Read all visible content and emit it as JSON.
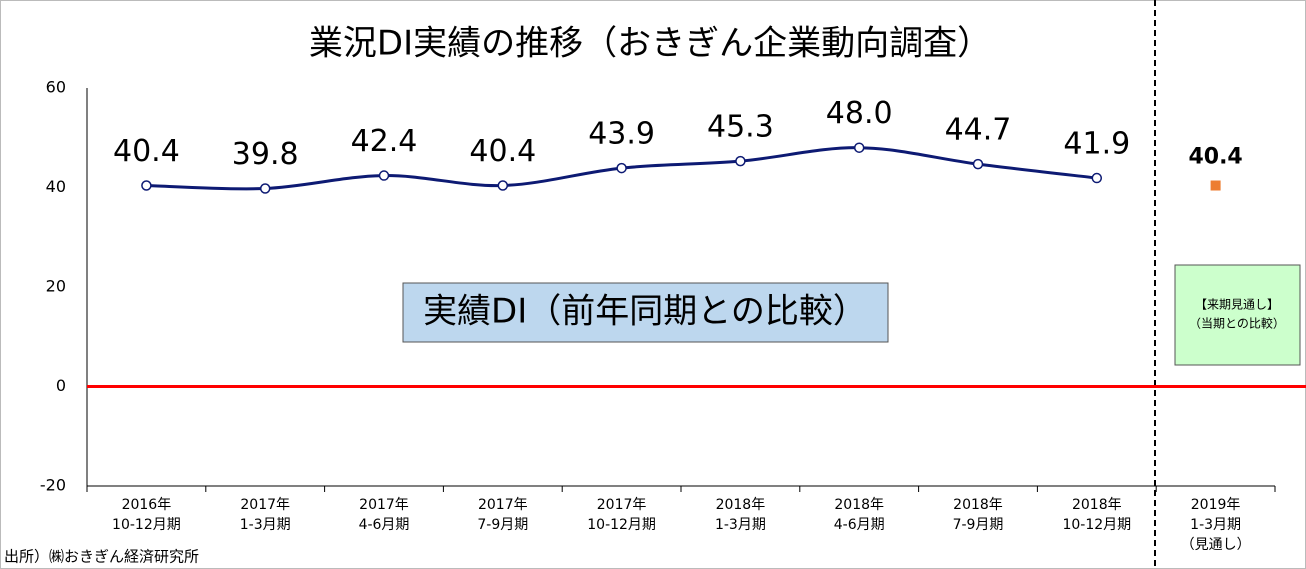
{
  "chart_data": {
    "type": "line",
    "title": "業況DI実績の推移（おきぎん企業動向調査）",
    "categories": [
      [
        "2016年",
        "10-12月期"
      ],
      [
        "2017年",
        "1-3月期"
      ],
      [
        "2017年",
        "4-6月期"
      ],
      [
        "2017年",
        "7-9月期"
      ],
      [
        "2017年",
        "10-12月期"
      ],
      [
        "2018年",
        "1-3月期"
      ],
      [
        "2018年",
        "4-6月期"
      ],
      [
        "2018年",
        "7-9月期"
      ],
      [
        "2018年",
        "10-12月期"
      ],
      [
        "2019年",
        "1-3月期",
        "（見通し）"
      ]
    ],
    "series": [
      {
        "color": "#0d1a73",
        "values": [
          40.4,
          39.8,
          42.4,
          40.4,
          43.9,
          45.3,
          48.0,
          44.7,
          41.9,
          null
        ],
        "value_labels": [
          "40.4",
          "39.8",
          "42.4",
          "40.4",
          "43.9",
          "45.3",
          "48.0",
          "44.7",
          "41.9",
          null
        ]
      },
      {
        "color": "#ed7d31",
        "values": [
          null,
          null,
          null,
          null,
          null,
          null,
          null,
          null,
          null,
          40.4
        ],
        "value_labels": [
          null,
          null,
          null,
          null,
          null,
          null,
          null,
          null,
          null,
          "40.4"
        ]
      }
    ],
    "ylim": [
      -20,
      60
    ],
    "yticks": [
      -20,
      0,
      20,
      40,
      60
    ],
    "zero_line_color": "#ff0000",
    "annotations": [
      "実績DI（前年同期との比較）",
      [
        "【来期見通し】",
        "（当期との比較）"
      ]
    ],
    "source": "出所）㈱おきぎん経済研究所"
  }
}
